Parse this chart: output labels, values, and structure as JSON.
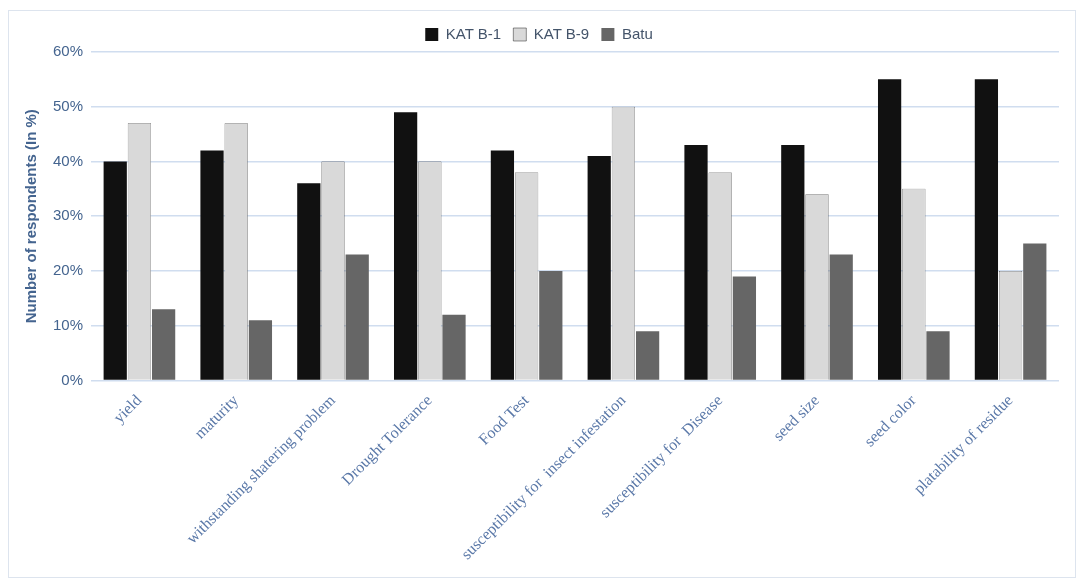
{
  "chart_data": {
    "type": "bar",
    "ylabel": "Number of respondents (In %)",
    "categories": [
      "yield",
      "maturity",
      "withstanding shatering problem",
      "Drought Tolerance",
      "Food Test",
      "susceptibility for  insect infestation",
      "susceptibility for  Disease",
      "seed size",
      "seed color",
      "platability of residue"
    ],
    "series": [
      {
        "name": "KAT B-1",
        "color": "#111111",
        "values": [
          40,
          42,
          36,
          49,
          42,
          41,
          43,
          43,
          55,
          55
        ]
      },
      {
        "name": "KAT B-9",
        "color": "#d9d9d9",
        "values": [
          47,
          47,
          40,
          40,
          38,
          50,
          38,
          34,
          35,
          20
        ]
      },
      {
        "name": "Batu",
        "color": "#666666",
        "values": [
          13,
          11,
          23,
          12,
          20,
          9,
          19,
          23,
          9,
          25
        ]
      }
    ],
    "ylim": [
      0,
      60
    ],
    "yticks": [
      {
        "value": 0,
        "label": "0%"
      },
      {
        "value": 10,
        "label": "10%"
      },
      {
        "value": 20,
        "label": "20%"
      },
      {
        "value": 30,
        "label": "30%"
      },
      {
        "value": 40,
        "label": "40%"
      },
      {
        "value": 50,
        "label": "50%"
      },
      {
        "value": 60,
        "label": "60%"
      }
    ],
    "grid": "y",
    "legend": "top"
  }
}
